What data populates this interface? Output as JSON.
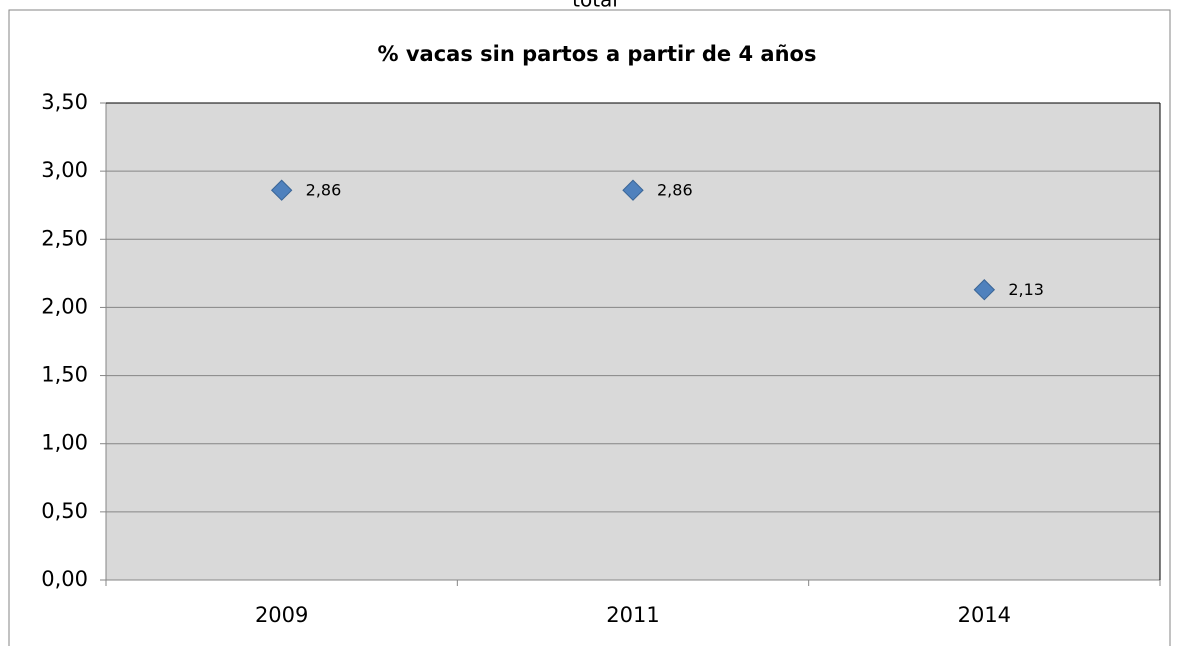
{
  "top_text": "total",
  "chart_data": {
    "type": "line",
    "title": "% vacas sin partos a partir de 4 años",
    "categories": [
      "2009",
      "2011",
      "2014"
    ],
    "values": [
      2.86,
      2.86,
      2.13
    ],
    "value_labels": [
      "2,86",
      "2,86",
      "2,13"
    ],
    "color": "#4f81bd",
    "show_line": false,
    "marker": "diamond",
    "ylim": [
      0,
      3.5
    ],
    "yticks": [
      {
        "value": 0,
        "label": "0,00"
      },
      {
        "value": 0.5,
        "label": "0,50"
      },
      {
        "value": 1,
        "label": "1,00"
      },
      {
        "value": 1.5,
        "label": "1,50"
      },
      {
        "value": 2,
        "label": "2,00"
      },
      {
        "value": 2.5,
        "label": "2,50"
      },
      {
        "value": 3,
        "label": "3,00"
      },
      {
        "value": 3.5,
        "label": "3,50"
      }
    ],
    "grid": true
  }
}
